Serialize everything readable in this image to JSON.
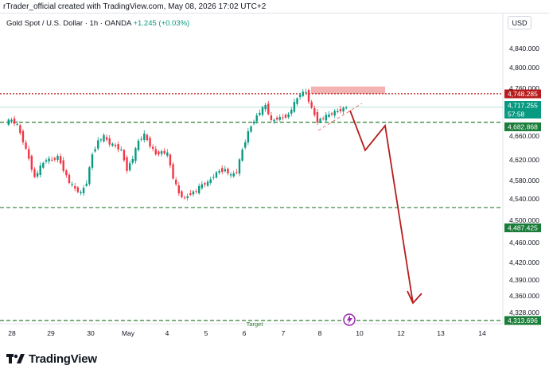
{
  "header": {
    "text": "rTrader_official created with TradingView.com, May 08, 2026 17:02 UTC+2"
  },
  "symbol": {
    "name": "Gold Spot / U.S. Dollar · 1h · OANDA",
    "change": "+1.245 (+0.03%)"
  },
  "currency_label": "USD",
  "chart_data": {
    "type": "candlestick",
    "y_ticks": [
      "4,840.000",
      "4,800.000",
      "4,760.000",
      "4,700.000",
      "4,660.000",
      "4,620.000",
      "4,580.000",
      "4,540.000",
      "4,500.000",
      "4,460.000",
      "4,420.000",
      "4,390.000",
      "4,360.000",
      "4,328.000"
    ],
    "y_tick_values": [
      4840,
      4800,
      4760,
      4700,
      4660,
      4620,
      4580,
      4540,
      4500,
      4460,
      4420,
      4390,
      4360,
      4328
    ],
    "x_ticks": [
      "28",
      "29",
      "30",
      "May",
      "4",
      "5",
      "6",
      "7",
      "8",
      "10",
      "12",
      "13",
      "14"
    ],
    "price_labels": [
      {
        "text": "4,748.285",
        "value": 4748.285,
        "color": "#b71c1c"
      },
      {
        "text": "4,717.255",
        "value": 4717.255,
        "color": "#089981",
        "sub": "57:58"
      },
      {
        "text": "4,682.868",
        "value": 4682.868,
        "color": "#1b7d3a"
      },
      {
        "text": "4,487.425",
        "value": 4487.425,
        "color": "#1b7d3a"
      },
      {
        "text": "4,313.696",
        "value": 4313.696,
        "color": "#1b7d3a"
      }
    ],
    "levels": [
      {
        "value": 4748.285,
        "style": "dotted",
        "color": "#b71c1c"
      },
      {
        "value": 4682.868,
        "style": "dashed",
        "color": "#2e7d32"
      },
      {
        "value": 4487.425,
        "style": "dashed",
        "color": "#2e7d32"
      },
      {
        "value": 4313.696,
        "style": "dashed",
        "color": "#2e7d32"
      }
    ],
    "resistance_zone": {
      "low": 4748,
      "high": 4765
    },
    "target_label": "Target",
    "projection_path": [
      {
        "date": "8 May",
        "price": 4725
      },
      {
        "date": "9 May",
        "price": 4640
      },
      {
        "date": "10 May",
        "price": 4690
      },
      {
        "date": "12 May",
        "price": 4368
      }
    ],
    "price_path": [
      [
        0,
        4683
      ],
      [
        2,
        4688
      ],
      [
        4,
        4676
      ],
      [
        6,
        4640
      ],
      [
        8,
        4600
      ],
      [
        10,
        4556
      ],
      [
        12,
        4580
      ],
      [
        14,
        4598
      ],
      [
        16,
        4596
      ],
      [
        18,
        4604
      ],
      [
        20,
        4575
      ],
      [
        22,
        4545
      ],
      [
        24,
        4530
      ],
      [
        26,
        4520
      ],
      [
        28,
        4545
      ],
      [
        30,
        4610
      ],
      [
        32,
        4640
      ],
      [
        34,
        4650
      ],
      [
        36,
        4634
      ],
      [
        38,
        4628
      ],
      [
        40,
        4618
      ],
      [
        42,
        4575
      ],
      [
        44,
        4600
      ],
      [
        46,
        4640
      ],
      [
        48,
        4654
      ],
      [
        50,
        4630
      ],
      [
        52,
        4610
      ],
      [
        54,
        4615
      ],
      [
        56,
        4610
      ],
      [
        58,
        4556
      ],
      [
        60,
        4520
      ],
      [
        62,
        4508
      ],
      [
        64,
        4520
      ],
      [
        66,
        4526
      ],
      [
        68,
        4540
      ],
      [
        70,
        4544
      ],
      [
        72,
        4560
      ],
      [
        74,
        4572
      ],
      [
        76,
        4574
      ],
      [
        78,
        4560
      ],
      [
        80,
        4570
      ],
      [
        82,
        4620
      ],
      [
        84,
        4660
      ],
      [
        86,
        4688
      ],
      [
        88,
        4706
      ],
      [
        90,
        4722
      ],
      [
        92,
        4685
      ],
      [
        94,
        4692
      ],
      [
        96,
        4694
      ],
      [
        98,
        4700
      ],
      [
        100,
        4726
      ],
      [
        102,
        4748
      ],
      [
        104,
        4752
      ],
      [
        106,
        4714
      ],
      [
        108,
        4686
      ],
      [
        110,
        4693
      ],
      [
        112,
        4700
      ],
      [
        114,
        4706
      ],
      [
        116,
        4711
      ],
      [
        118,
        4717
      ]
    ]
  }
}
